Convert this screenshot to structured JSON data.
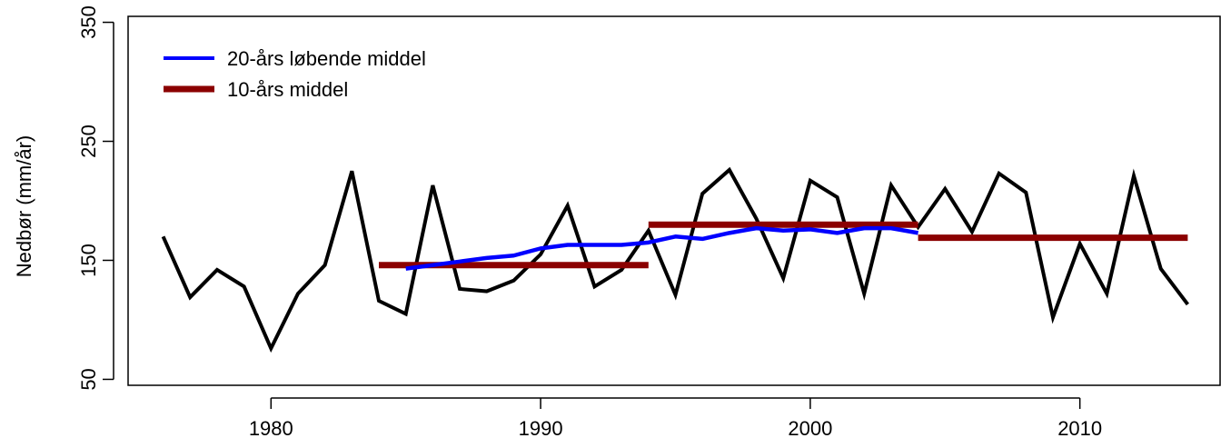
{
  "chart_data": {
    "type": "line",
    "title": "",
    "xlabel": "",
    "ylabel": "Nedbør (mm/år)",
    "xlim": [
      1974.7,
      2015.2
    ],
    "ylim": [
      45,
      355
    ],
    "xticks": [
      1980,
      1990,
      2000,
      2010
    ],
    "yticks": [
      50,
      150,
      250,
      350
    ],
    "ytick_labels": [
      "50",
      "150",
      "250",
      "350"
    ],
    "legend_position": "top-left",
    "series": [
      {
        "name": "",
        "color": "#000000",
        "x": [
          1976,
          1977,
          1978,
          1979,
          1980,
          1981,
          1982,
          1983,
          1984,
          1985,
          1986,
          1987,
          1988,
          1989,
          1990,
          1991,
          1992,
          1993,
          1994,
          1995,
          1996,
          1997,
          1998,
          1999,
          2000,
          2001,
          2002,
          2003,
          2004,
          2005,
          2006,
          2007,
          2008,
          2009,
          2010,
          2011,
          2012,
          2013,
          2014
        ],
        "y": [
          170,
          119,
          142,
          128,
          76,
          122,
          146,
          225,
          116,
          105,
          213,
          126,
          124,
          133,
          155,
          196,
          128,
          142,
          175,
          121,
          206,
          226,
          185,
          135,
          217,
          203,
          122,
          213,
          178,
          210,
          174,
          223,
          207,
          102,
          164,
          122,
          221,
          143,
          113
        ]
      },
      {
        "name": "20-års løbende middel",
        "color": "#0000ff",
        "x": [
          1985,
          1986,
          1987,
          1988,
          1989,
          1990,
          1991,
          1992,
          1993,
          1994,
          1995,
          1996,
          1997,
          1998,
          1999,
          2000,
          2001,
          2002,
          2003,
          2004
        ],
        "y": [
          143,
          146,
          149,
          152,
          154,
          160,
          163,
          163,
          163,
          165,
          170,
          168,
          173,
          177,
          175,
          176,
          173,
          177,
          177,
          173
        ]
      },
      {
        "name": "10-års middel",
        "color": "#8b0000",
        "segments": [
          {
            "x": [
              1984,
              1994
            ],
            "y": [
              146,
              146
            ]
          },
          {
            "x": [
              1994,
              2004
            ],
            "y": [
              180,
              180
            ]
          },
          {
            "x": [
              2004,
              2014
            ],
            "y": [
              169,
              169
            ]
          }
        ]
      }
    ]
  }
}
